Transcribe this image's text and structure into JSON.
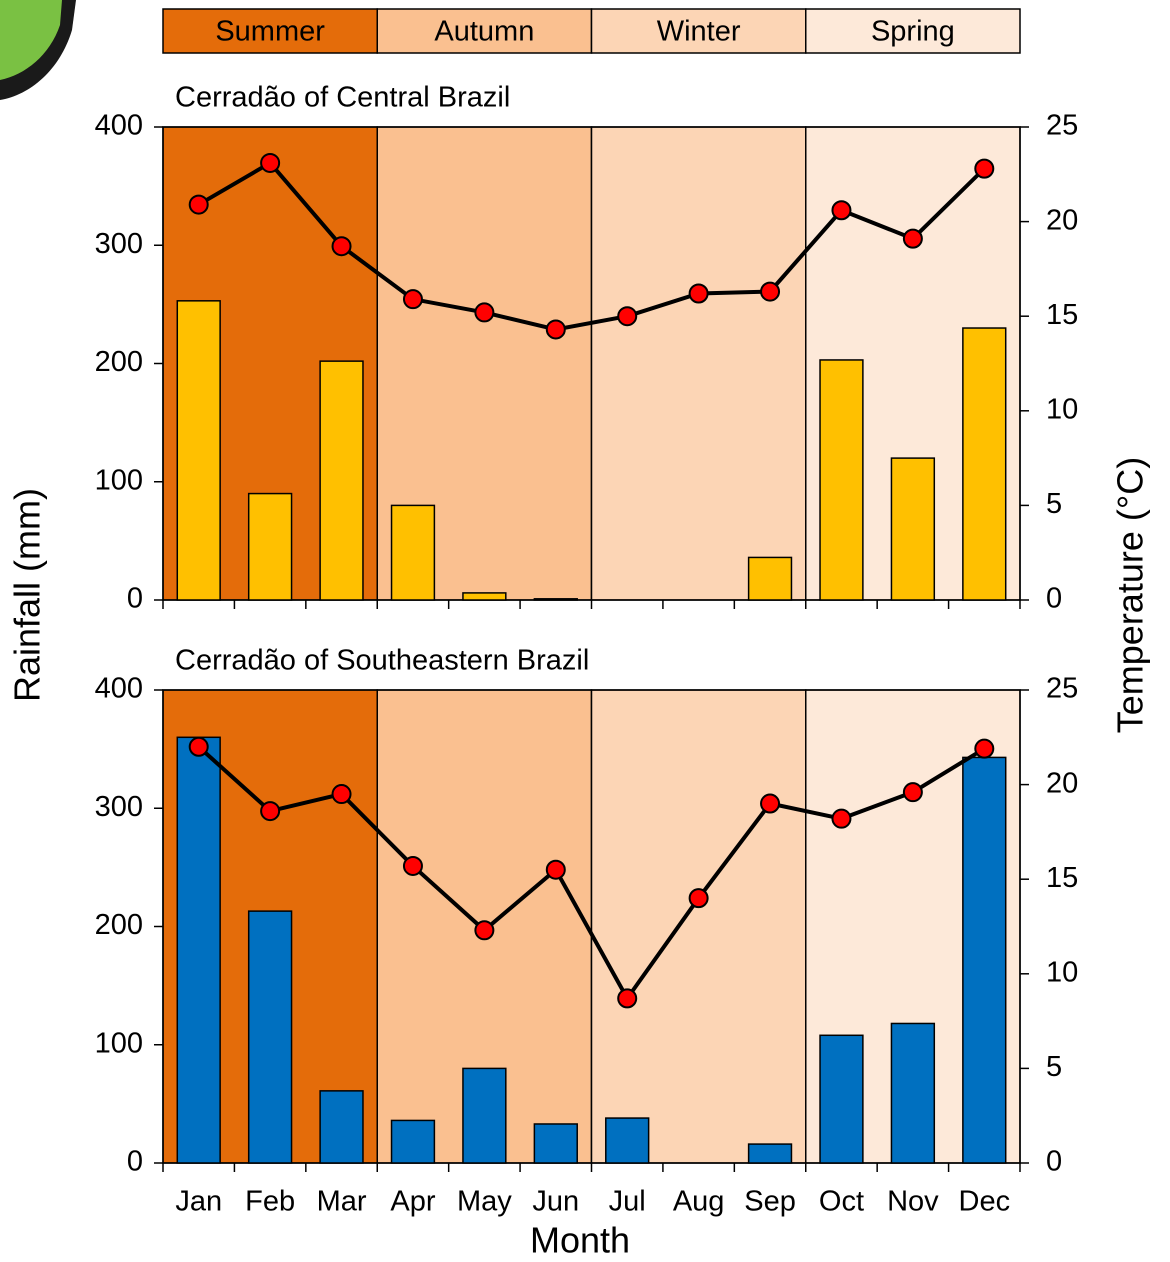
{
  "seasons": [
    {
      "name": "Summer",
      "color": "#e46c0a"
    },
    {
      "name": "Autumn",
      "color": "#fac090"
    },
    {
      "name": "Winter",
      "color": "#fcd5b5"
    },
    {
      "name": "Spring",
      "color": "#fde9d9"
    }
  ],
  "ylabel": "Rainfall (mm)",
  "y2label": "Temperature (°C)",
  "xlabel": "Month",
  "chart_data": [
    {
      "type": "bar-line",
      "title": "Cerradão of Central Brazil",
      "categories": [
        null,
        null,
        null,
        null,
        null,
        null,
        null,
        null,
        null,
        null,
        null,
        null
      ],
      "series": [
        {
          "name": "Rainfall",
          "color": "#ffc000",
          "axis": "y",
          "values": [
            253,
            90,
            202,
            80,
            6,
            1,
            0,
            0,
            36,
            203,
            120,
            230
          ]
        },
        {
          "name": "Temperature",
          "color": "#ff0000",
          "axis": "y2",
          "values": [
            20.9,
            23.1,
            18.7,
            15.9,
            15.2,
            14.3,
            15.0,
            16.2,
            16.3,
            20.6,
            19.1,
            22.8
          ]
        }
      ],
      "ylim": [
        0,
        400
      ],
      "yticks": [
        0,
        100,
        200,
        300,
        400
      ],
      "y2lim": [
        0,
        25
      ],
      "y2ticks": [
        0,
        5,
        10,
        15,
        20,
        25
      ]
    },
    {
      "type": "bar-line",
      "title": "Cerradão of Southeastern Brazil",
      "categories": [
        "Jan",
        "Feb",
        "Mar",
        "Apr",
        "May",
        "Jun",
        "Jul",
        "Aug",
        "Sep",
        "Oct",
        "Nov",
        "Dec"
      ],
      "series": [
        {
          "name": "Rainfall",
          "color": "#0070c0",
          "axis": "y",
          "values": [
            360,
            213,
            61,
            36,
            80,
            33,
            38,
            0,
            16,
            108,
            118,
            343
          ]
        },
        {
          "name": "Temperature",
          "color": "#ff0000",
          "axis": "y2",
          "values": [
            22.0,
            18.6,
            19.5,
            15.7,
            12.3,
            15.5,
            8.7,
            14.0,
            19.0,
            18.2,
            19.6,
            21.9
          ]
        }
      ],
      "ylim": [
        0,
        400
      ],
      "yticks": [
        0,
        100,
        200,
        300,
        400
      ],
      "y2lim": [
        0,
        25
      ],
      "y2ticks": [
        0,
        5,
        10,
        15,
        20,
        25
      ]
    }
  ]
}
